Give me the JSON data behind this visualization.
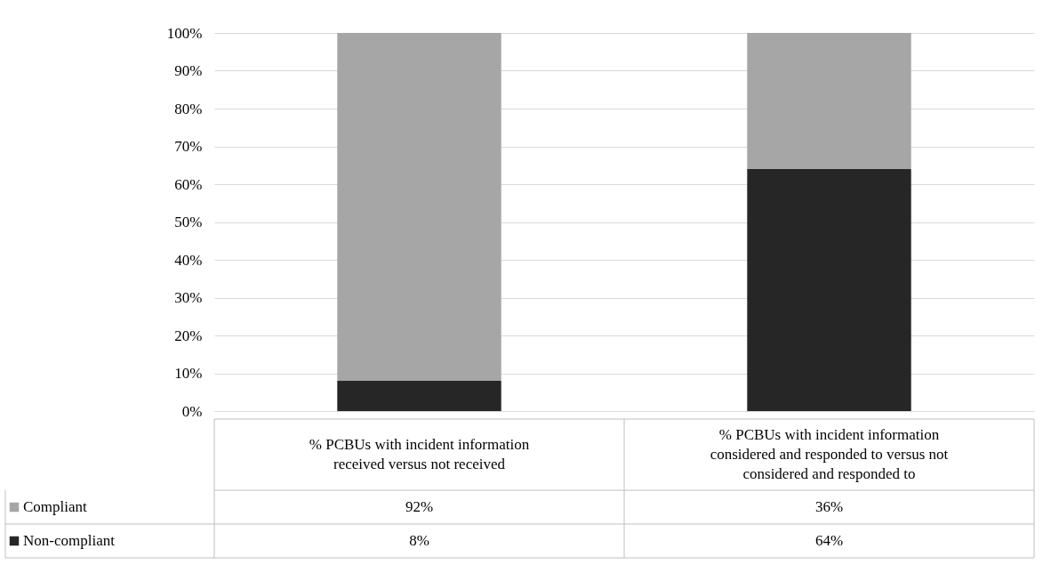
{
  "chart_data": {
    "type": "bar",
    "stacked": true,
    "categories": [
      "% PCBUs with incident information received versus not received",
      "% PCBUs with incident information considered and responded to versus not considered and responded to"
    ],
    "series": [
      {
        "name": "Non-compliant",
        "color": "#262626",
        "values": [
          8,
          64
        ],
        "value_labels": [
          "8%",
          "64%"
        ]
      },
      {
        "name": "Compliant",
        "color": "#a6a6a6",
        "values": [
          92,
          36
        ],
        "value_labels": [
          "92%",
          "36%"
        ]
      }
    ],
    "ylim": [
      0,
      100
    ],
    "yticks": [
      {
        "value": 0,
        "label": "0%"
      },
      {
        "value": 10,
        "label": "10%"
      },
      {
        "value": 20,
        "label": "20%"
      },
      {
        "value": 30,
        "label": "30%"
      },
      {
        "value": 40,
        "label": "40%"
      },
      {
        "value": 50,
        "label": "50%"
      },
      {
        "value": 60,
        "label": "60%"
      },
      {
        "value": 70,
        "label": "70%"
      },
      {
        "value": 80,
        "label": "80%"
      },
      {
        "value": 90,
        "label": "90%"
      },
      {
        "value": 100,
        "label": "100%"
      }
    ],
    "grid": "y",
    "legend": "bottom left",
    "tick_labels": "y"
  }
}
